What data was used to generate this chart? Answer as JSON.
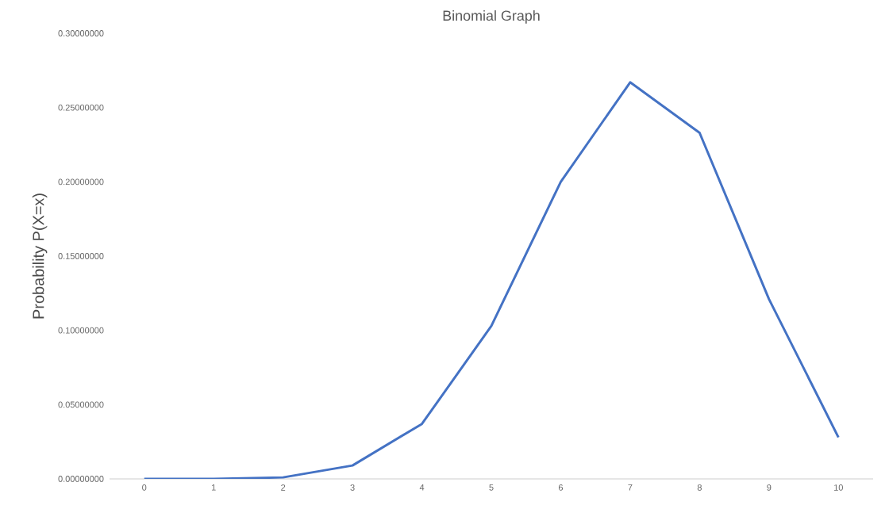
{
  "chart_data": {
    "type": "line",
    "title": "Binomial Graph",
    "ylabel": "Probability P(X=x)",
    "categories": [
      "0",
      "1",
      "2",
      "3",
      "4",
      "5",
      "6",
      "7",
      "8",
      "9",
      "10"
    ],
    "series": [
      {
        "color": "#4472c4",
        "values": [
          0,
          0,
          0.001,
          0.009,
          0.037,
          0.103,
          0.2,
          0.267,
          0.233,
          0.121,
          0.028
        ]
      }
    ],
    "ylim": [
      0,
      0.3
    ],
    "yticks": [
      {
        "value": 0,
        "label": "0.00000000"
      },
      {
        "value": 0.05,
        "label": "0.05000000"
      },
      {
        "value": 0.1,
        "label": "0.10000000"
      },
      {
        "value": 0.15,
        "label": "0.15000000"
      },
      {
        "value": 0.2,
        "label": "0.20000000"
      },
      {
        "value": 0.25,
        "label": "0.25000000"
      },
      {
        "value": 0.3,
        "label": "0.30000000"
      }
    ],
    "grid": false,
    "marker": "none",
    "line_style": "solid"
  }
}
